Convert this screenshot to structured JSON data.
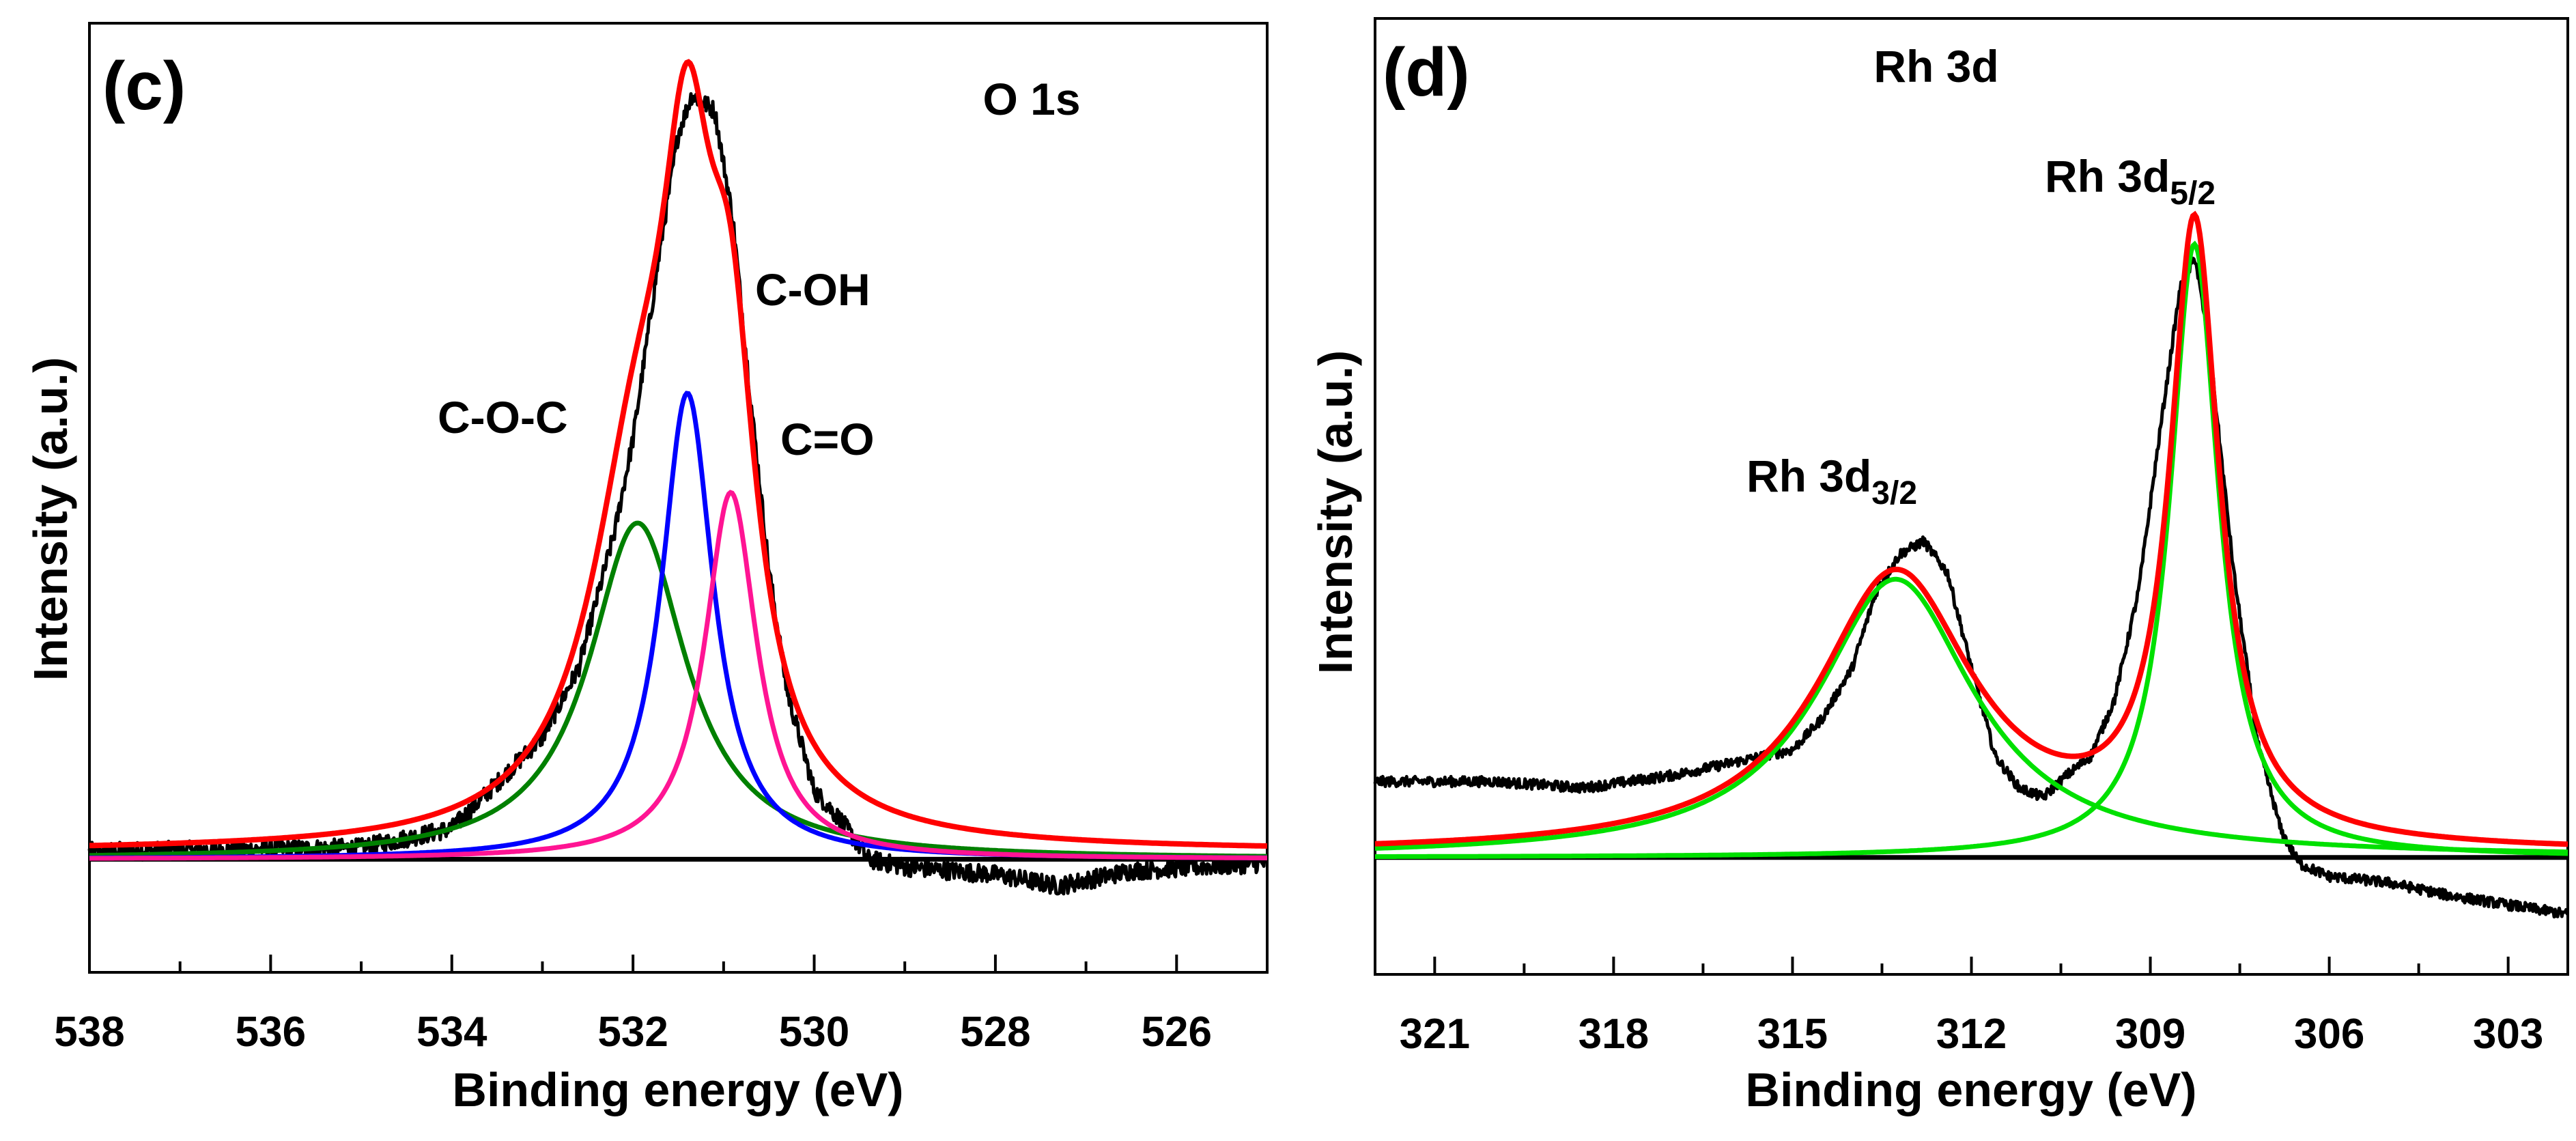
{
  "chart_data": [
    {
      "type": "line",
      "panel_label": "(c)",
      "title": "O 1s",
      "xlabel": "Binding energy (eV)",
      "ylabel": "Intensity (a.u.)",
      "xlim": [
        538,
        525
      ],
      "ylim": [
        -0.148,
        1.094
      ],
      "xticks_major": [
        538,
        536,
        534,
        532,
        530,
        528,
        526
      ],
      "xticks_minor_step": 1,
      "grid": false,
      "baseline": 0,
      "fit_offset": 0.01,
      "components": [
        {
          "name": "C-O-C",
          "color": "#008000",
          "center": 531.95,
          "height": 0.44,
          "fwhm": 1.3
        },
        {
          "name": "C-OH",
          "color": "#0000ff",
          "center": 531.4,
          "height": 0.61,
          "fwhm": 0.7
        },
        {
          "name": "C=O",
          "color": "#ff1493",
          "center": 530.92,
          "height": 0.48,
          "fwhm": 0.7
        }
      ],
      "envelope": {
        "name": "fit",
        "color": "#ff0000"
      },
      "experimental": {
        "name": "raw",
        "color": "#000000",
        "noise": 0.012,
        "points": [
          [
            538,
            0.01
          ],
          [
            535,
            0.015
          ],
          [
            534,
            0.04
          ],
          [
            533.5,
            0.1
          ],
          [
            533,
            0.16
          ],
          [
            532.6,
            0.25
          ],
          [
            532.2,
            0.43
          ],
          [
            532,
            0.55
          ],
          [
            531.7,
            0.8
          ],
          [
            531.5,
            0.95
          ],
          [
            531.35,
            1.0
          ],
          [
            531.1,
            0.98
          ],
          [
            530.9,
            0.84
          ],
          [
            530.7,
            0.6
          ],
          [
            530.5,
            0.38
          ],
          [
            530.3,
            0.22
          ],
          [
            530,
            0.09
          ],
          [
            529.7,
            0.05
          ],
          [
            529.4,
            0.0
          ],
          [
            529,
            -0.01
          ],
          [
            528,
            -0.02
          ],
          [
            527.3,
            -0.035
          ],
          [
            526.5,
            -0.015
          ],
          [
            525,
            -0.005
          ]
        ]
      },
      "annotations": [
        {
          "text": "C-OH"
        },
        {
          "text": "C-O-C"
        },
        {
          "text": "C=O"
        }
      ]
    },
    {
      "type": "line",
      "panel_label": "(d)",
      "title": "Rh 3d",
      "xlabel": "Binding energy (eV)",
      "ylabel": "Intensity (a.u.)",
      "xlim": [
        322,
        302
      ],
      "ylim": [
        -0.185,
        1.327
      ],
      "xticks_major": [
        321,
        318,
        315,
        312,
        309,
        306,
        303
      ],
      "xticks_minor_step": 1.5,
      "grid": false,
      "baseline": 0,
      "fit_offset": 0.006,
      "components": [
        {
          "name": "Rh 3d3/2",
          "color": "#00e000",
          "center": 313.27,
          "height": 0.44,
          "fwhm": 3.2
        },
        {
          "name": "Rh 3d5/2",
          "color": "#00e000",
          "center": 308.26,
          "height": 0.97,
          "fwhm": 1.0
        }
      ],
      "envelope": {
        "name": "fit",
        "color": "#ff0000"
      },
      "experimental": {
        "name": "raw",
        "color": "#000000",
        "noise": 0.008,
        "points": [
          [
            322,
            0.12
          ],
          [
            320,
            0.12
          ],
          [
            318.5,
            0.11
          ],
          [
            317,
            0.13
          ],
          [
            316,
            0.15
          ],
          [
            315,
            0.17
          ],
          [
            314.5,
            0.22
          ],
          [
            314,
            0.3
          ],
          [
            313.6,
            0.42
          ],
          [
            313.2,
            0.48
          ],
          [
            312.8,
            0.5
          ],
          [
            312.4,
            0.45
          ],
          [
            312,
            0.3
          ],
          [
            311.6,
            0.16
          ],
          [
            311.2,
            0.11
          ],
          [
            310.8,
            0.095
          ],
          [
            310.4,
            0.13
          ],
          [
            310,
            0.16
          ],
          [
            309.6,
            0.25
          ],
          [
            309.2,
            0.42
          ],
          [
            308.8,
            0.7
          ],
          [
            308.5,
            0.9
          ],
          [
            308.25,
            0.95
          ],
          [
            308,
            0.8
          ],
          [
            307.6,
            0.45
          ],
          [
            307.2,
            0.18
          ],
          [
            306.8,
            0.04
          ],
          [
            306.5,
            -0.01
          ],
          [
            306,
            -0.03
          ],
          [
            305,
            -0.04
          ],
          [
            304,
            -0.06
          ],
          [
            303,
            -0.075
          ],
          [
            302,
            -0.09
          ]
        ]
      },
      "annotations": [
        {
          "text": "Rh 3d",
          "sub": "5/2"
        },
        {
          "text": "Rh 3d",
          "sub": "3/2"
        }
      ]
    }
  ]
}
